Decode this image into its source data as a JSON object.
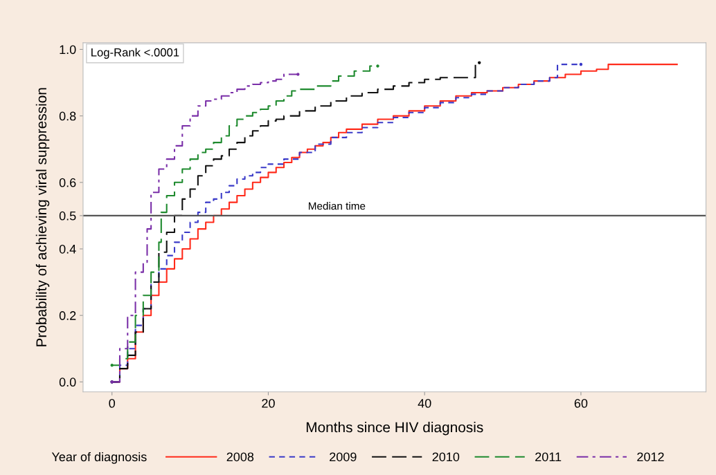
{
  "chart_data": {
    "type": "step",
    "xlabel": "Months since HIV diagnosis",
    "ylabel": "Probability of achieving viral suppression",
    "legend_title": "Year of diagnosis",
    "legend": "bottom",
    "grid": false,
    "annotations": [
      "Log-Rank <.0001"
    ],
    "xlim": [
      -3.7,
      76
    ],
    "ylim": [
      -0.03,
      1.02
    ],
    "xticks": [
      0,
      20,
      40,
      60
    ],
    "yticks": [
      {
        "value": 0,
        "label": "0.0"
      },
      {
        "value": 0.2,
        "label": "0.2"
      },
      {
        "value": 0.4,
        "label": "0.4"
      },
      {
        "value": 0.5,
        "label": "0.5"
      },
      {
        "value": 0.6,
        "label": "0.6"
      },
      {
        "value": 0.8,
        "label": "0.8"
      },
      {
        "value": 1,
        "label": "1.0"
      }
    ],
    "ref_lines": [
      {
        "axis": "y",
        "value": 0.5,
        "label": "Median time",
        "color": "#555555",
        "line_style": "solid"
      }
    ],
    "series": [
      {
        "name": "2008",
        "color": "#ff2a1a",
        "line_style": "solid",
        "x": [
          0,
          1,
          2,
          3,
          4,
          5,
          6,
          7,
          8,
          9,
          10,
          11,
          12,
          13,
          14,
          15,
          16,
          17,
          18,
          19,
          20,
          21,
          22,
          23,
          24,
          25,
          26,
          27,
          28,
          29,
          30,
          32,
          34,
          36,
          38,
          40,
          42,
          44,
          46,
          48,
          50,
          52,
          54,
          56,
          58,
          60,
          62,
          63.5,
          72.3
        ],
        "values": [
          0,
          0.04,
          0.07,
          0.15,
          0.2,
          0.26,
          0.3,
          0.34,
          0.37,
          0.4,
          0.43,
          0.46,
          0.48,
          0.5,
          0.52,
          0.54,
          0.56,
          0.58,
          0.6,
          0.615,
          0.63,
          0.645,
          0.66,
          0.675,
          0.69,
          0.7,
          0.71,
          0.72,
          0.735,
          0.75,
          0.76,
          0.775,
          0.79,
          0.8,
          0.815,
          0.83,
          0.845,
          0.86,
          0.87,
          0.875,
          0.885,
          0.895,
          0.905,
          0.915,
          0.925,
          0.935,
          0.94,
          0.955,
          0.955
        ]
      },
      {
        "name": "2009",
        "color": "#3a3ac8",
        "line_style": "dashed",
        "x": [
          0,
          1,
          2,
          3,
          4,
          5,
          6,
          7,
          8,
          9,
          10,
          11,
          12,
          13,
          14,
          15,
          16,
          17,
          18,
          19,
          20,
          22,
          24,
          26,
          28,
          30,
          32,
          34,
          36,
          38,
          40,
          42,
          44,
          46,
          48,
          50,
          52,
          54,
          56,
          57,
          60
        ],
        "values": [
          0,
          0.05,
          0.1,
          0.17,
          0.22,
          0.3,
          0.34,
          0.38,
          0.42,
          0.45,
          0.48,
          0.51,
          0.54,
          0.55,
          0.57,
          0.59,
          0.61,
          0.62,
          0.63,
          0.645,
          0.655,
          0.67,
          0.69,
          0.715,
          0.735,
          0.75,
          0.765,
          0.78,
          0.795,
          0.81,
          0.825,
          0.84,
          0.855,
          0.865,
          0.875,
          0.885,
          0.895,
          0.905,
          0.915,
          0.955,
          0.955
        ]
      },
      {
        "name": "2010",
        "color": "#111111",
        "line_style": "longdash",
        "x": [
          0,
          1,
          2,
          3,
          4,
          5,
          6,
          7,
          8,
          9,
          10,
          11,
          12,
          13,
          14,
          15,
          16,
          17,
          18,
          19,
          20,
          21,
          22,
          24,
          26,
          28,
          30,
          32,
          34,
          36,
          38,
          40,
          42,
          44,
          46.5,
          47
        ],
        "values": [
          0,
          0.04,
          0.08,
          0.15,
          0.22,
          0.3,
          0.39,
          0.45,
          0.5,
          0.55,
          0.58,
          0.62,
          0.65,
          0.67,
          0.68,
          0.7,
          0.72,
          0.74,
          0.755,
          0.77,
          0.785,
          0.79,
          0.8,
          0.815,
          0.83,
          0.845,
          0.86,
          0.87,
          0.88,
          0.89,
          0.9,
          0.91,
          0.915,
          0.915,
          0.96,
          0.96
        ]
      },
      {
        "name": "2011",
        "color": "#1e8a2e",
        "line_style": "longdash",
        "x": [
          0,
          1,
          2,
          3,
          4,
          5,
          6,
          6.3,
          7,
          8,
          9,
          10,
          11,
          12,
          13,
          14,
          15,
          16,
          17,
          18,
          19,
          20,
          21,
          22,
          23,
          24,
          26,
          28,
          29,
          31,
          33,
          34
        ],
        "values": [
          0.05,
          0.07,
          0.12,
          0.2,
          0.26,
          0.33,
          0.42,
          0.51,
          0.56,
          0.6,
          0.64,
          0.67,
          0.69,
          0.7,
          0.72,
          0.74,
          0.77,
          0.79,
          0.8,
          0.81,
          0.82,
          0.83,
          0.845,
          0.86,
          0.875,
          0.88,
          0.89,
          0.905,
          0.92,
          0.935,
          0.95,
          0.95
        ]
      },
      {
        "name": "2012",
        "color": "#7a2fa8",
        "line_style": "dashdot",
        "x": [
          0,
          1,
          2,
          3,
          4,
          4.5,
          5,
          6,
          7,
          8,
          9,
          10,
          11,
          12,
          13,
          14,
          15,
          16,
          17,
          18,
          19,
          20,
          21,
          22,
          23.8
        ],
        "values": [
          0,
          0.1,
          0.2,
          0.33,
          0.36,
          0.46,
          0.57,
          0.64,
          0.67,
          0.71,
          0.77,
          0.8,
          0.83,
          0.845,
          0.85,
          0.86,
          0.87,
          0.88,
          0.89,
          0.895,
          0.9,
          0.905,
          0.91,
          0.925,
          0.925
        ]
      }
    ]
  }
}
